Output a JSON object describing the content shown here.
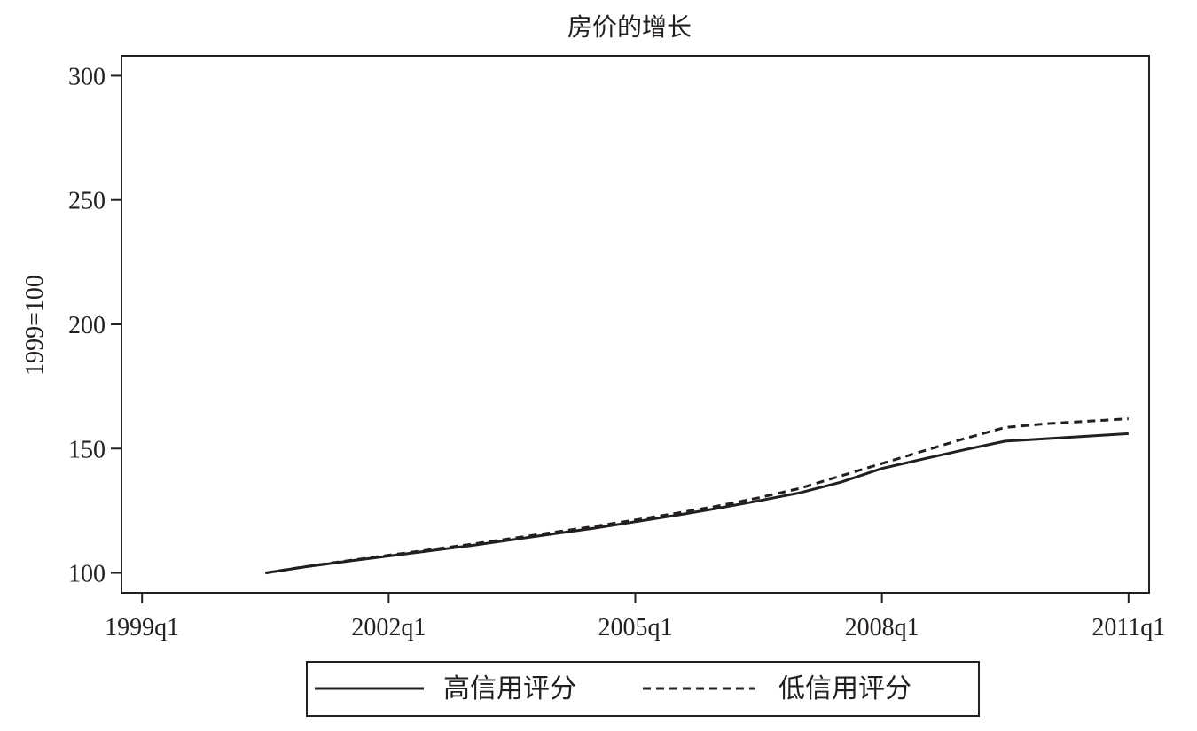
{
  "chart_data": {
    "type": "line",
    "title": "房价的增长",
    "xlabel": "",
    "ylabel": "1999=100",
    "x_ticks": [
      "1999q1",
      "2002q1",
      "2005q1",
      "2008q1",
      "2011q1"
    ],
    "x_tick_values": [
      1999.0,
      2002.0,
      2005.0,
      2008.0,
      2011.0
    ],
    "xlim": [
      1998.75,
      2011.25
    ],
    "y_ticks": [
      100,
      150,
      200,
      250,
      300
    ],
    "ylim": [
      92,
      308
    ],
    "grid": false,
    "legend_position": "bottom",
    "series": [
      {
        "name": "高信用评分",
        "style": "solid",
        "color": "#231f20",
        "x": [
          2000.5,
          2001.0,
          2001.5,
          2002.0,
          2002.5,
          2003.0,
          2003.5,
          2004.0,
          2004.5,
          2005.0,
          2005.5,
          2006.0,
          2006.5,
          2007.0,
          2007.5,
          2008.0,
          2008.5,
          2009.0,
          2009.5,
          2010.0,
          2010.5,
          2011.0
        ],
        "y": [
          100,
          102.5,
          104.7,
          106.8,
          108.9,
          111.0,
          113.3,
          115.7,
          118.0,
          120.6,
          123.2,
          126.0,
          129.0,
          132.2,
          136.5,
          142.0,
          145.8,
          149.5,
          153.0,
          154.0,
          155.0,
          156.0
        ]
      },
      {
        "name": "低信用评分",
        "style": "dashed",
        "color": "#231f20",
        "x": [
          2000.5,
          2001.0,
          2001.5,
          2002.0,
          2002.5,
          2003.0,
          2003.5,
          2004.0,
          2004.5,
          2005.0,
          2005.5,
          2006.0,
          2006.5,
          2007.0,
          2007.5,
          2008.0,
          2008.5,
          2009.0,
          2009.5,
          2010.0,
          2010.5,
          2011.0
        ],
        "y": [
          100,
          102.6,
          104.9,
          107.1,
          109.3,
          111.5,
          113.9,
          116.3,
          118.7,
          121.3,
          124.0,
          126.9,
          130.2,
          134.0,
          139.0,
          144.0,
          149.0,
          154.0,
          158.5,
          160.0,
          161.0,
          162.0
        ]
      }
    ]
  }
}
